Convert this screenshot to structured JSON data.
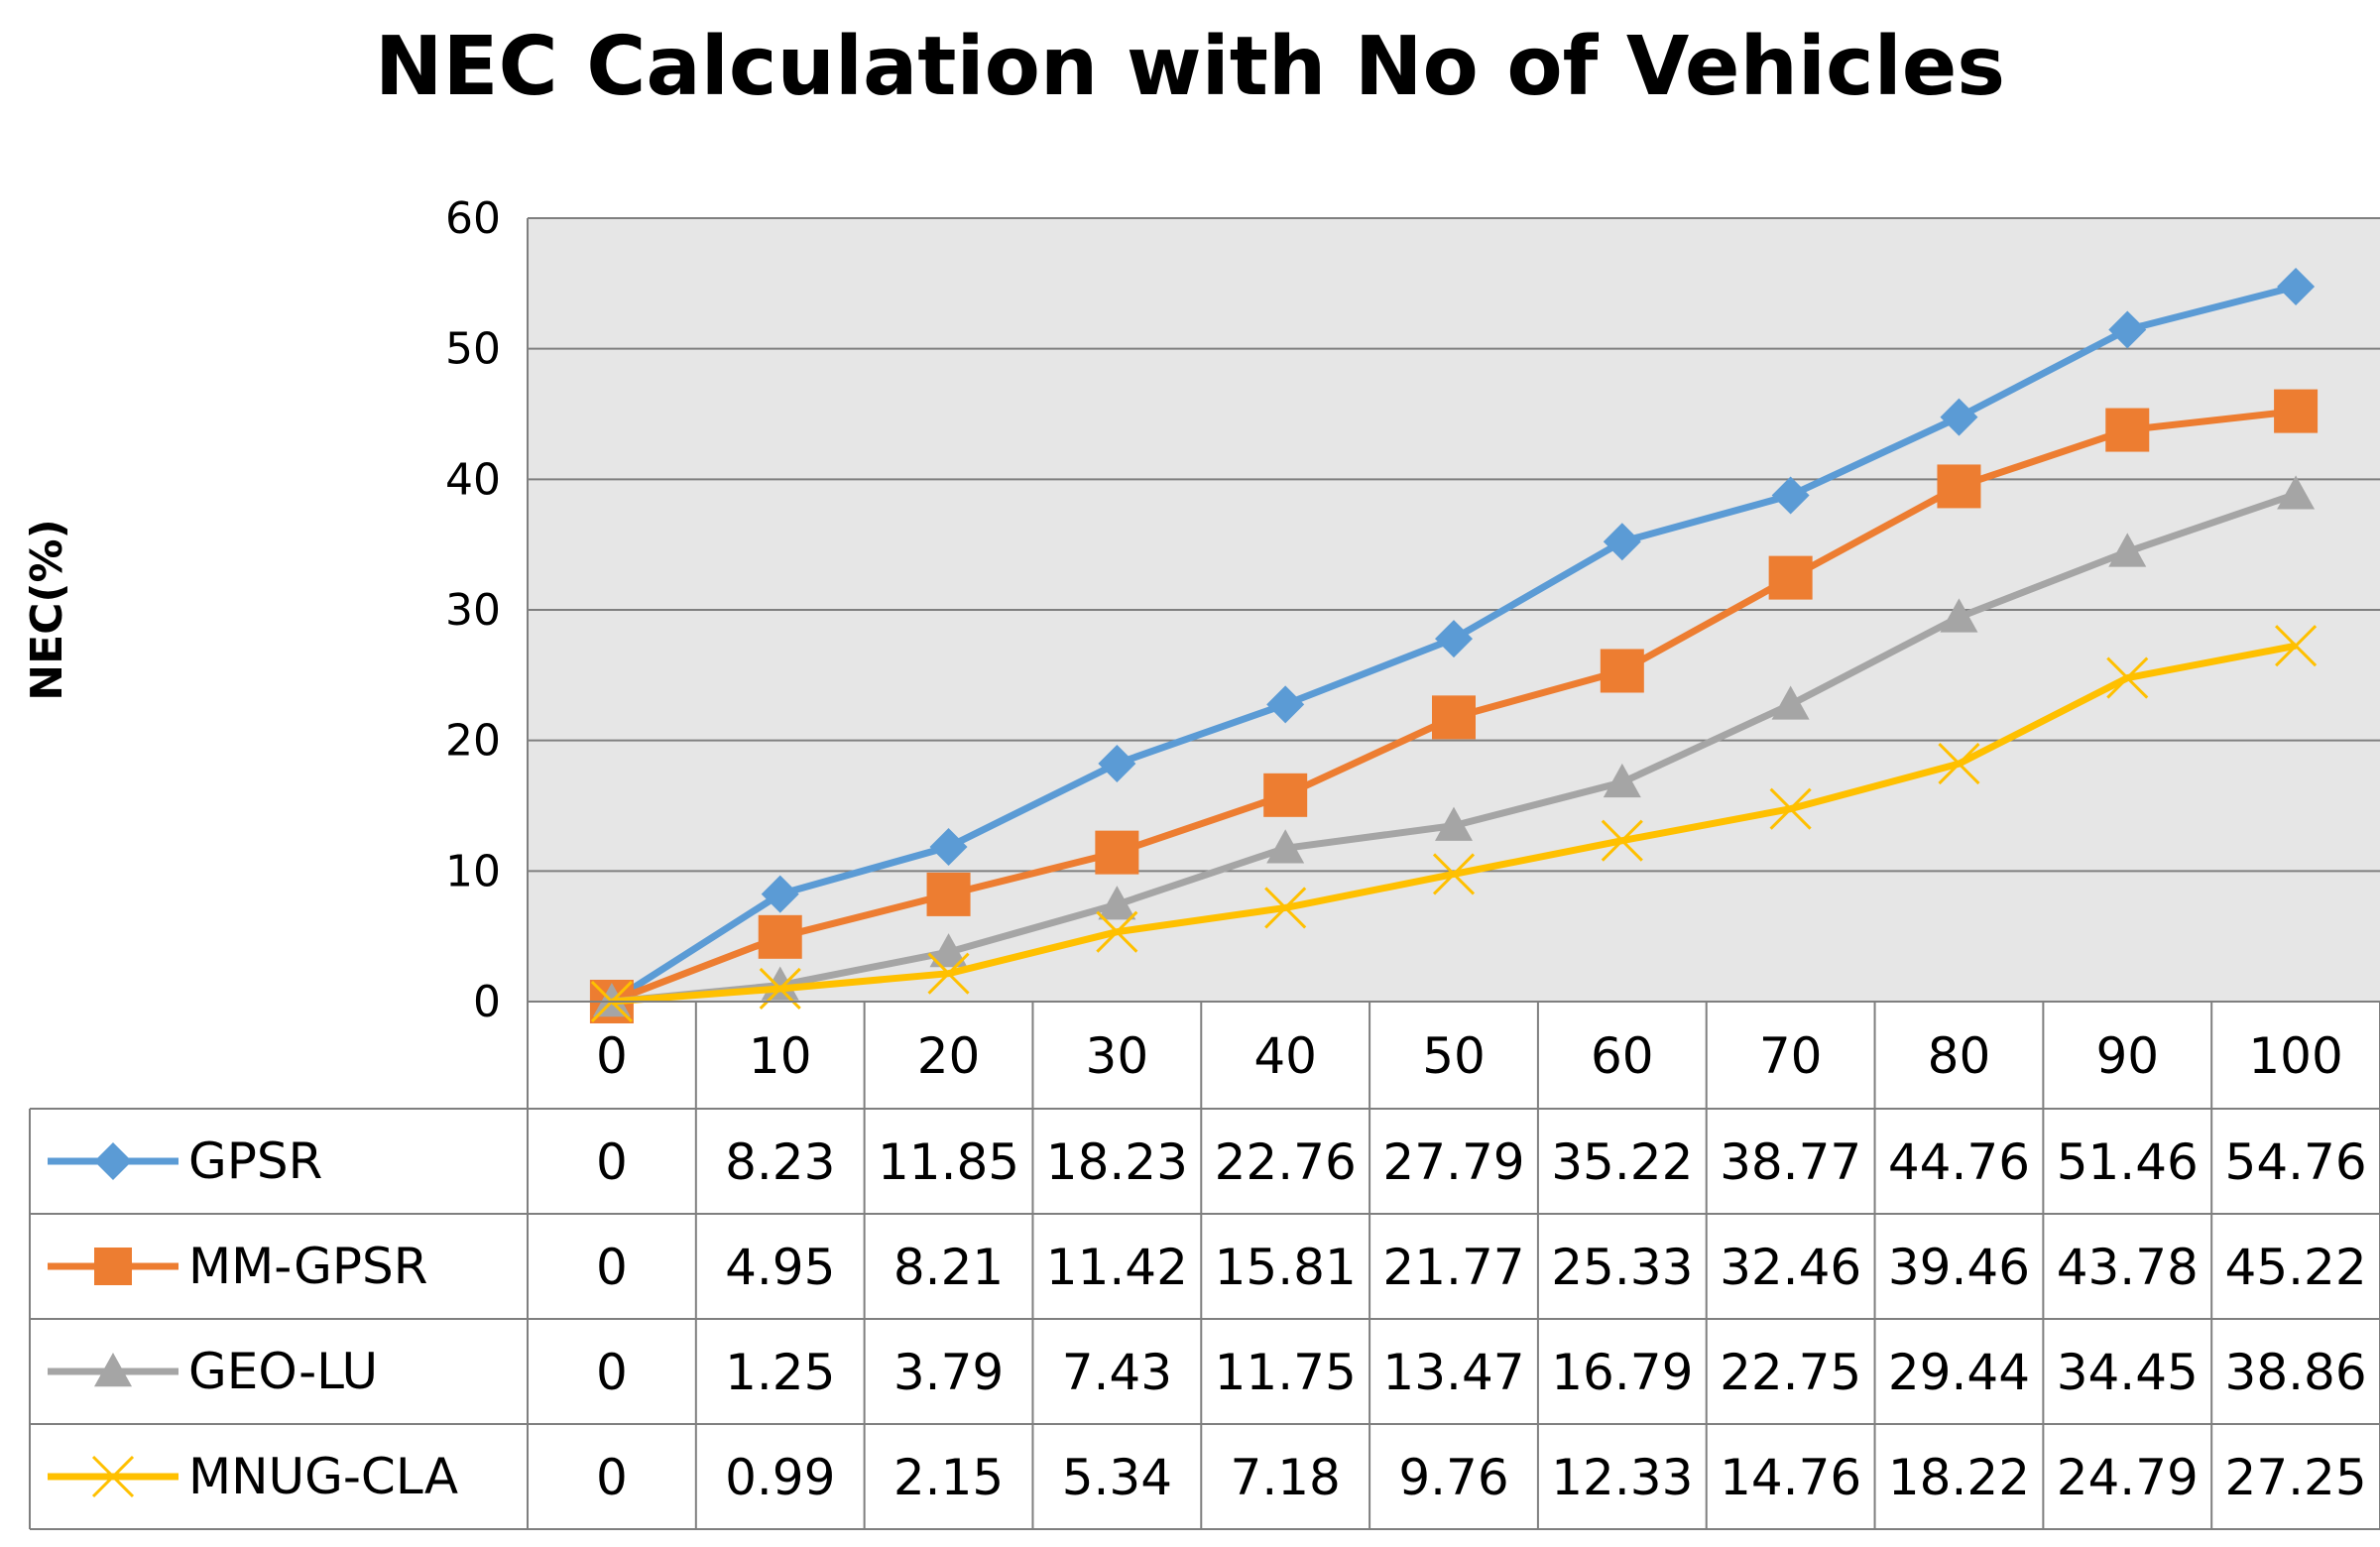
{
  "chart_data": {
    "type": "line",
    "title": "NEC Calculation with No of Vehicles",
    "xlabel": "",
    "ylabel": "NEC(%)",
    "categories": [
      "0",
      "10",
      "20",
      "30",
      "40",
      "50",
      "60",
      "70",
      "80",
      "90",
      "100"
    ],
    "ylim": [
      0,
      60
    ],
    "yticks": [
      0,
      10,
      20,
      30,
      40,
      50,
      60
    ],
    "grid": true,
    "legend_position": "data-table-left",
    "series": [
      {
        "name": "GPSR",
        "color": "#5b9bd5",
        "marker": "diamond",
        "values": [
          0,
          8.23,
          11.85,
          18.23,
          22.76,
          27.79,
          35.22,
          38.77,
          44.76,
          51.46,
          54.76
        ],
        "labels": [
          "0",
          "8.23",
          "11.85",
          "18.23",
          "22.76",
          "27.79",
          "35.22",
          "38.77",
          "44.76",
          "51.46",
          "54.76"
        ]
      },
      {
        "name": "MM-GPSR",
        "color": "#ed7d31",
        "marker": "square",
        "values": [
          0,
          4.95,
          8.21,
          11.42,
          15.81,
          21.77,
          25.33,
          32.46,
          39.46,
          43.78,
          45.22
        ],
        "labels": [
          "0",
          "4.95",
          "8.21",
          "11.42",
          "15.81",
          "21.77",
          "25.33",
          "32.46",
          "39.46",
          "43.78",
          "45.22"
        ]
      },
      {
        "name": "GEO-LU",
        "color": "#a5a5a5",
        "marker": "triangle",
        "values": [
          0,
          1.25,
          3.79,
          7.43,
          11.75,
          13.47,
          16.79,
          22.75,
          29.44,
          34.45,
          38.86
        ],
        "labels": [
          "0",
          "1.25",
          "3.79",
          "7.43",
          "11.75",
          "13.47",
          "16.79",
          "22.75",
          "29.44",
          "34.45",
          "38.86"
        ]
      },
      {
        "name": "MNUG-CLA",
        "color": "#ffc000",
        "marker": "x",
        "values": [
          0,
          0.99,
          2.15,
          5.34,
          7.18,
          9.76,
          12.33,
          14.76,
          18.22,
          24.79,
          27.25
        ],
        "labels": [
          "0",
          "0.99",
          "2.15",
          "5.34",
          "7.18",
          "9.76",
          "12.33",
          "14.76",
          "18.22",
          "24.79",
          "27.25"
        ]
      }
    ]
  }
}
